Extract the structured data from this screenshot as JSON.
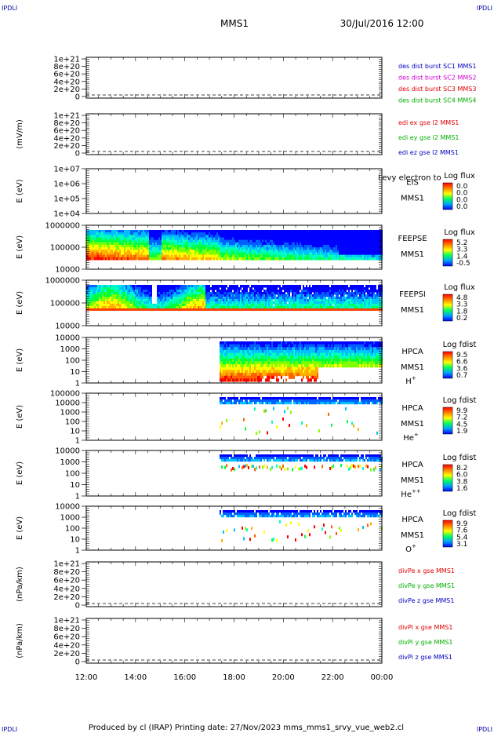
{
  "header": {
    "corner_left": "IPDLI",
    "corner_right": "IPDLI",
    "title": "MMS1",
    "datetime": "30/Jul/2016 12:00"
  },
  "footer": {
    "text": "Produced by cl (IRAP)   Printing date: 27/Nov/2023   mms_mms1_srvy_vue_web2.cl",
    "corner_left": "IPDLI",
    "corner_right": "IPDLI"
  },
  "colors": {
    "red": "#e00000",
    "green": "#00b000",
    "blue": "#0000c0",
    "magenta": "#d000d0",
    "orange": "#ff8c00"
  },
  "chart_data": [
    {
      "type": "line",
      "ylabel": "",
      "ylim": [
        0,
        1e+21
      ],
      "y_ticks": [
        "1e+21",
        "8e+20",
        "6e+20",
        "4e+20",
        "2e+20",
        "0"
      ],
      "legend_placement": "right",
      "series": [
        {
          "name": "des dist burst SC1 MMS1",
          "color": "#0000c0",
          "values": []
        },
        {
          "name": "des dist burst SC2 MMS2",
          "color": "#d000d0",
          "values": []
        },
        {
          "name": "des dist burst SC3 MMS3",
          "color": "#e00000",
          "values": []
        },
        {
          "name": "des dist burst SC4 MMS4",
          "color": "#00b000",
          "values": []
        }
      ]
    },
    {
      "type": "line",
      "ylabel": "(mV/m)",
      "ylim": [
        0,
        1e+21
      ],
      "y_ticks": [
        "1e+21",
        "8e+20",
        "6e+20",
        "4e+20",
        "2e+20",
        "0"
      ],
      "legend_placement": "right",
      "series": [
        {
          "name": "edi ex gse l2 MMS1",
          "color": "#e00000",
          "values": []
        },
        {
          "name": "edi ey gse l2 MMS1",
          "color": "#00b000",
          "values": []
        },
        {
          "name": "edi ez gse l2 MMS1",
          "color": "#0000c0",
          "values": []
        }
      ]
    },
    {
      "type": "heatmap",
      "ylabel": "E (eV)",
      "y_ticks": [
        "1e+07",
        "1e+06",
        "1e+05",
        "1e+04"
      ],
      "scale": "log",
      "instrument": "EIS",
      "spacecraft": "MMS1",
      "overlay_text": "Levy electron to",
      "colorbar_title": "Log flux",
      "colorbar_ticks": [
        "0.0",
        "0.0",
        "0.0",
        "0.0"
      ],
      "empty": true
    },
    {
      "type": "heatmap",
      "ylabel": "E (eV)",
      "y_ticks": [
        "1000000",
        "100000",
        "10000"
      ],
      "scale": "log",
      "instrument": "FEEPSE",
      "spacecraft": "MMS1",
      "colorbar_title": "Log flux",
      "colorbar_ticks": [
        "5.2",
        "3.3",
        "1.4",
        "-0.5"
      ]
    },
    {
      "type": "heatmap",
      "ylabel": "E (eV)",
      "y_ticks": [
        "1000000",
        "100000",
        "10000"
      ],
      "scale": "log",
      "instrument": "FEEPSI",
      "spacecraft": "MMS1",
      "colorbar_title": "Log flux",
      "colorbar_ticks": [
        "4.8",
        "3.3",
        "1.8",
        "0.2"
      ]
    },
    {
      "type": "heatmap",
      "ylabel": "E (eV)",
      "y_ticks": [
        "10000",
        "1000",
        "100",
        "10",
        "1"
      ],
      "scale": "log",
      "instrument": "HPCA",
      "spacecraft": "MMS1",
      "species": "H",
      "species_sup": "+",
      "colorbar_title": "Log fdist",
      "colorbar_ticks": [
        "9.5",
        "6.6",
        "3.6",
        "0.7"
      ]
    },
    {
      "type": "heatmap",
      "ylabel": "E (eV)",
      "y_ticks": [
        "100000",
        "10000",
        "1000",
        "100",
        "10",
        "1"
      ],
      "scale": "log",
      "instrument": "HPCA",
      "spacecraft": "MMS1",
      "species": "He",
      "species_sup": "+",
      "colorbar_title": "Log fdist",
      "colorbar_ticks": [
        "9.9",
        "7.2",
        "4.5",
        "1.9"
      ]
    },
    {
      "type": "heatmap",
      "ylabel": "E (eV)",
      "y_ticks": [
        "10000",
        "1000",
        "100",
        "10",
        "1"
      ],
      "scale": "log",
      "instrument": "HPCA",
      "spacecraft": "MMS1",
      "species": "He",
      "species_sup": "++",
      "colorbar_title": "Log fdist",
      "colorbar_ticks": [
        "8.2",
        "6.0",
        "3.8",
        "1.6"
      ]
    },
    {
      "type": "heatmap",
      "ylabel": "E (eV)",
      "y_ticks": [
        "10000",
        "1000",
        "100",
        "10",
        "1"
      ],
      "scale": "log",
      "instrument": "HPCA",
      "spacecraft": "MMS1",
      "species": "O",
      "species_sup": "+",
      "colorbar_title": "Log fdist",
      "colorbar_ticks": [
        "9.9",
        "7.6",
        "5.4",
        "3.1"
      ]
    },
    {
      "type": "line",
      "ylabel": "(nPa/km)",
      "ylim": [
        0,
        1e+21
      ],
      "y_ticks": [
        "1e+21",
        "8e+20",
        "6e+20",
        "4e+20",
        "2e+20",
        "0"
      ],
      "legend_placement": "right",
      "series": [
        {
          "name": "divPe x gse MMS1",
          "color": "#e00000",
          "values": []
        },
        {
          "name": "divPe y gse MMS1",
          "color": "#00b000",
          "values": []
        },
        {
          "name": "divPe z gse MMS1",
          "color": "#0000c0",
          "values": []
        }
      ]
    },
    {
      "type": "line",
      "ylabel": "(nPa/km)",
      "ylim": [
        0,
        1e+21
      ],
      "y_ticks": [
        "1e+21",
        "8e+20",
        "6e+20",
        "4e+20",
        "2e+20",
        "0"
      ],
      "legend_placement": "right",
      "series": [
        {
          "name": "divPi x gse MMS1",
          "color": "#e00000",
          "values": []
        },
        {
          "name": "divPi y gse MMS1",
          "color": "#00b000",
          "values": []
        },
        {
          "name": "divPi z gse MMS1",
          "color": "#0000c0",
          "values": []
        }
      ]
    }
  ],
  "x_axis": {
    "ticks": [
      "12:00",
      "14:00",
      "16:00",
      "18:00",
      "20:00",
      "22:00",
      "00:00"
    ]
  }
}
